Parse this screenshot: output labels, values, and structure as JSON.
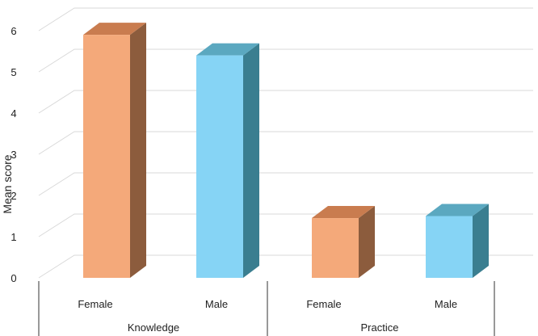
{
  "chart_data": {
    "type": "bar",
    "style": "3d-clustered-column",
    "ylabel": "Mean score",
    "ylim": [
      0,
      6
    ],
    "yticks": [
      "0",
      "1",
      "2",
      "3",
      "4",
      "5",
      "6"
    ],
    "grid": true,
    "groups": [
      {
        "label": "Knowledge",
        "bars": [
          {
            "category": "Female",
            "value": 5.9,
            "color": "#F4A97A",
            "side_color": "#8C5C3D",
            "top_color": "#C97C4F"
          },
          {
            "category": "Male",
            "value": 5.4,
            "color": "#86D4F5",
            "side_color": "#3A7E90",
            "top_color": "#5BA8C0"
          }
        ]
      },
      {
        "label": "Practice",
        "bars": [
          {
            "category": "Female",
            "value": 1.45,
            "color": "#F4A97A",
            "side_color": "#8C5C3D",
            "top_color": "#C97C4F"
          },
          {
            "category": "Male",
            "value": 1.5,
            "color": "#86D4F5",
            "side_color": "#3A7E90",
            "top_color": "#5BA8C0"
          }
        ]
      }
    ]
  }
}
